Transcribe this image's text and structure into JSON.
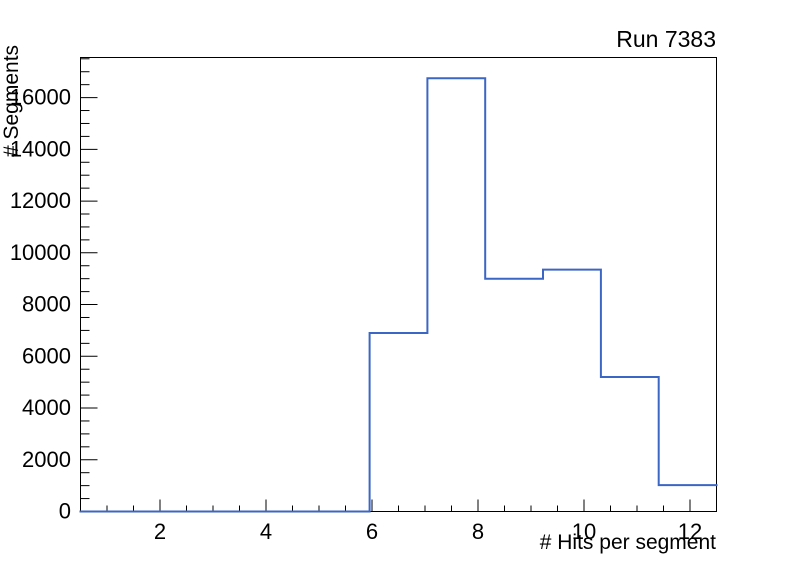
{
  "chart_data": {
    "type": "bar",
    "subtype": "step-histogram",
    "title": "Run 7383",
    "xlabel": "# Hits per segment",
    "ylabel": "# Segments",
    "xlim": [
      0.5,
      12.5
    ],
    "ylim": [
      0,
      17550
    ],
    "grid": false,
    "legend": "none",
    "background_color": "#ffffff",
    "axis_color": "#000000",
    "line_color": "#3C66C4",
    "n_bins": 11,
    "bin_edges": [
      0.5,
      1.5909,
      2.6818,
      3.7727,
      4.8636,
      5.9545,
      7.0455,
      8.1364,
      9.2273,
      10.3182,
      11.4091,
      12.5
    ],
    "counts": [
      0,
      0,
      0,
      0,
      0,
      6900,
      16750,
      9000,
      9350,
      5200,
      1020
    ],
    "x_tick_values": [
      2,
      4,
      6,
      8,
      10,
      12
    ],
    "x_tick_labels": [
      "2",
      "4",
      "6",
      "8",
      "10",
      "12"
    ],
    "x_minor_tick_step": 0.5,
    "y_tick_values": [
      0,
      2000,
      4000,
      6000,
      8000,
      10000,
      12000,
      14000,
      16000
    ],
    "y_tick_labels": [
      "0",
      "2000",
      "4000",
      "6000",
      "8000",
      "10000",
      "12000",
      "14000",
      "16000"
    ],
    "y_minor_tick_step": 500
  }
}
